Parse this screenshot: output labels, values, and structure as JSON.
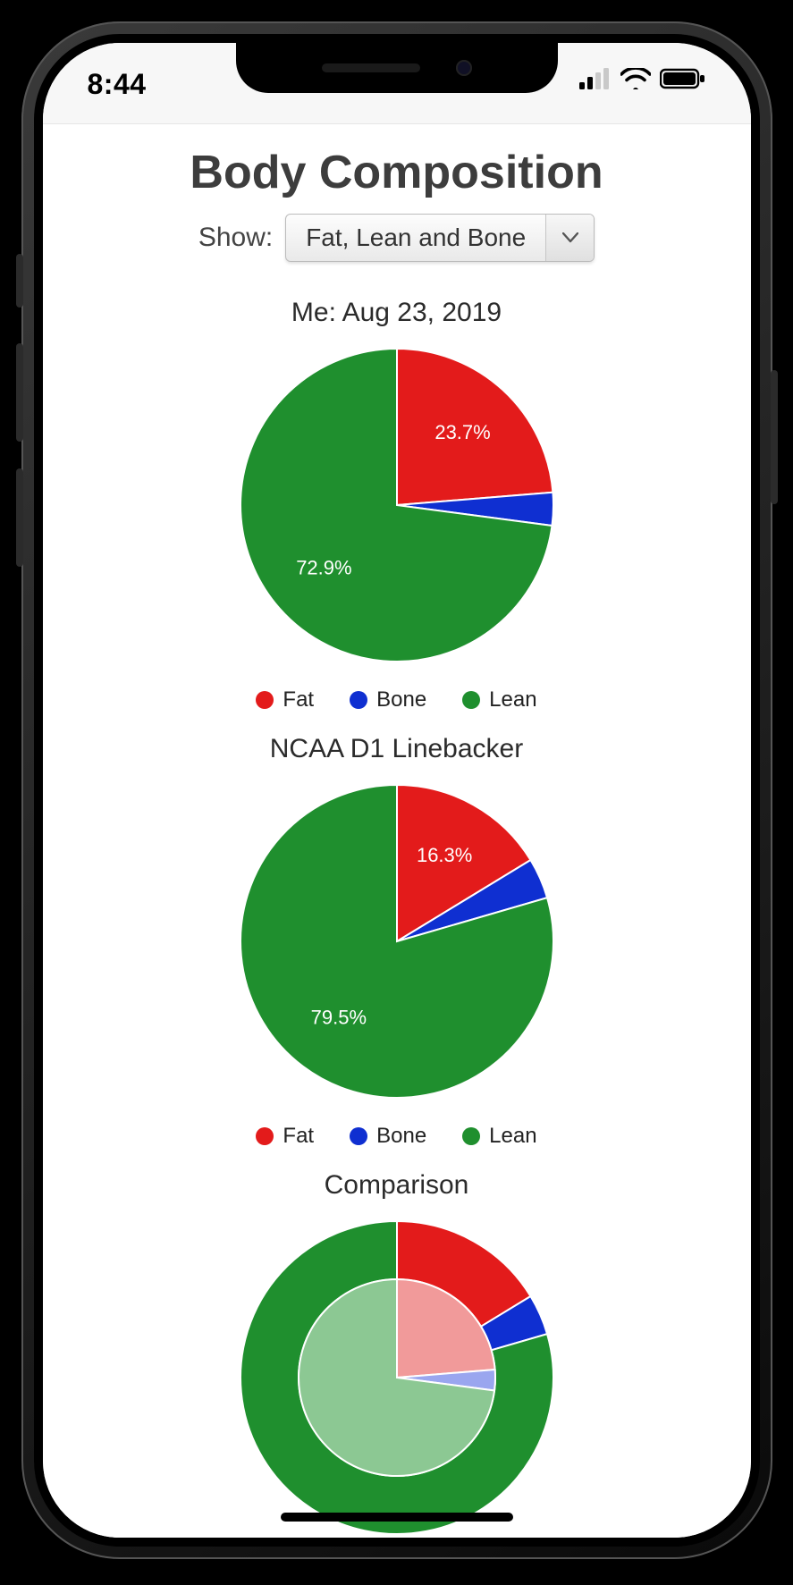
{
  "status": {
    "time": "8:44"
  },
  "page": {
    "title": "Body Composition",
    "show_label": "Show:",
    "dropdown_value": "Fat, Lean and Bone"
  },
  "colors": {
    "fat": "#e31b1b",
    "bone": "#0f2fd1",
    "lean": "#1f8f2e",
    "fat_light": "#f19a9a",
    "bone_light": "#9aa6ef",
    "lean_light": "#8cc893",
    "slice_stroke": "#ffffff",
    "slice_stroke_width": 2,
    "pie_label_color": "#ffffff"
  },
  "typography": {
    "page_title_fontsize": 52,
    "chart_title_fontsize": 30,
    "legend_fontsize": 24,
    "pie_label_fontsize": 22,
    "pie_label_weight": "500"
  },
  "layout": {
    "pie_radius": 175,
    "pie_svg_size": 380,
    "comparison_outer_radius": 175,
    "comparison_inner_radius": 110
  },
  "legend": [
    {
      "label": "Fat",
      "color_key": "fat"
    },
    {
      "label": "Bone",
      "color_key": "bone"
    },
    {
      "label": "Lean",
      "color_key": "lean"
    }
  ],
  "charts": {
    "me": {
      "type": "pie",
      "title": "Me: Aug 23, 2019",
      "slices": [
        {
          "key": "fat",
          "value": 23.7,
          "label": "23.7%",
          "show_label": true
        },
        {
          "key": "bone",
          "value": 3.4,
          "label": "3.4%",
          "show_label": false
        },
        {
          "key": "lean",
          "value": 72.9,
          "label": "72.9%",
          "show_label": true
        }
      ]
    },
    "ref": {
      "type": "pie",
      "title": "NCAA D1 Linebacker",
      "slices": [
        {
          "key": "fat",
          "value": 16.3,
          "label": "16.3%",
          "show_label": true
        },
        {
          "key": "bone",
          "value": 4.2,
          "label": "4.2%",
          "show_label": false
        },
        {
          "key": "lean",
          "value": 79.5,
          "label": "79.5%",
          "show_label": true
        }
      ]
    },
    "comparison": {
      "type": "nested_pie",
      "title": "Comparison",
      "outer_source": "ref",
      "inner_source": "me",
      "inner_uses_light_colors": true
    }
  }
}
